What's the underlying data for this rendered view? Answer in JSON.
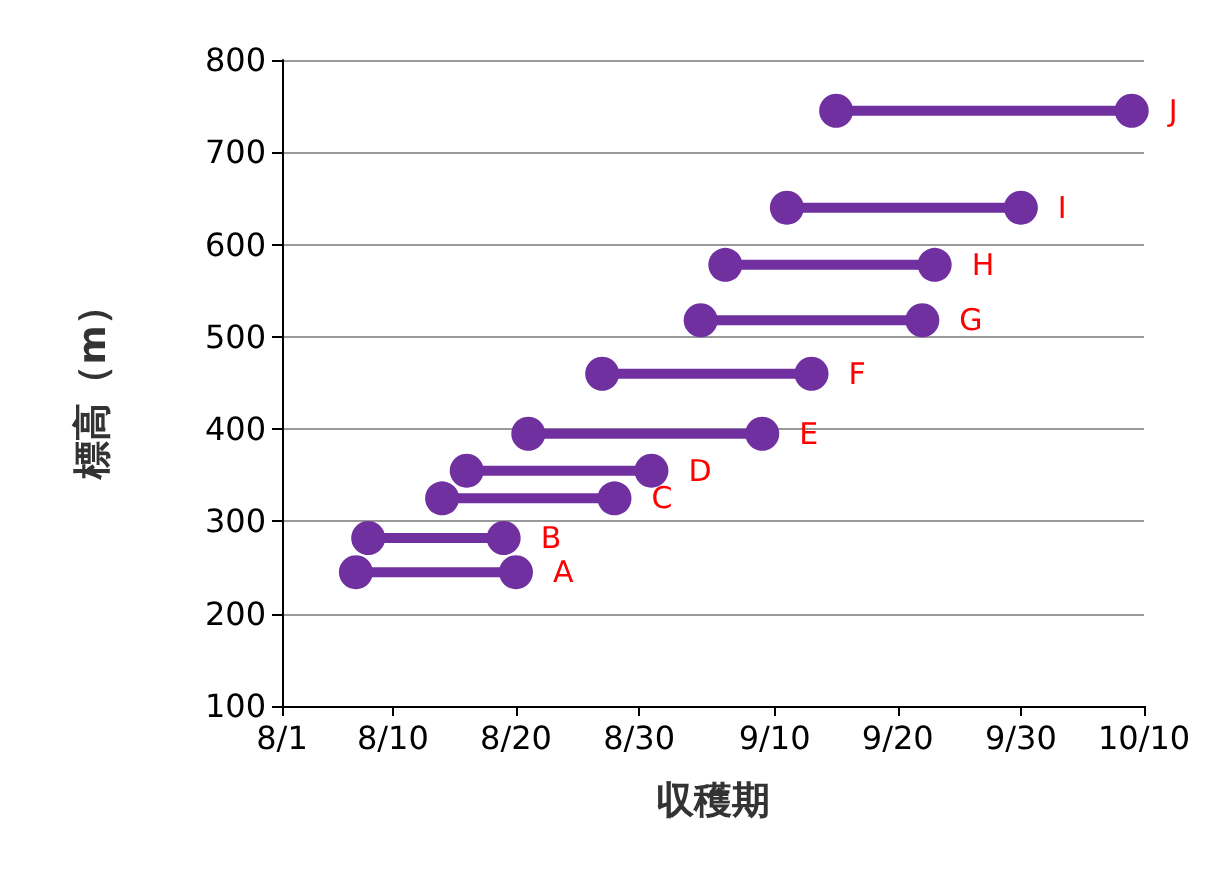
{
  "chart_data": {
    "type": "line",
    "xlabel": "収穫期",
    "ylabel": "標高（m）",
    "xlim": [
      "--08-01",
      "--10-10"
    ],
    "xticks": [
      {
        "value": "--08-01",
        "label": "8/1"
      },
      {
        "value": "--08-10",
        "label": "8/10"
      },
      {
        "value": "--08-20",
        "label": "8/20"
      },
      {
        "value": "--08-30",
        "label": "8/30"
      },
      {
        "value": "--09-10",
        "label": "9/10"
      },
      {
        "value": "--09-20",
        "label": "9/20"
      },
      {
        "value": "--09-30",
        "label": "9/30"
      },
      {
        "value": "--10-10",
        "label": "10/10"
      }
    ],
    "ylim": [
      100,
      800
    ],
    "yticks": [
      100,
      200,
      300,
      400,
      500,
      600,
      700,
      800
    ],
    "grid": "y",
    "legend": false,
    "marker": "circle",
    "line_style": "solid",
    "series": [
      {
        "name": "A",
        "color": "#7030a0",
        "x": [
          "--08-07",
          "--08-20"
        ],
        "values": [
          245,
          245
        ]
      },
      {
        "name": "B",
        "color": "#7030a0",
        "x": [
          "--08-08",
          "--08-19"
        ],
        "values": [
          282,
          282
        ]
      },
      {
        "name": "C",
        "color": "#7030a0",
        "x": [
          "--08-14",
          "--08-28"
        ],
        "values": [
          325,
          325
        ]
      },
      {
        "name": "D",
        "color": "#7030a0",
        "x": [
          "--08-16",
          "--08-31"
        ],
        "values": [
          355,
          355
        ]
      },
      {
        "name": "E",
        "color": "#7030a0",
        "x": [
          "--08-21",
          "--09-09"
        ],
        "values": [
          395,
          395
        ]
      },
      {
        "name": "F",
        "color": "#7030a0",
        "x": [
          "--08-27",
          "--09-13"
        ],
        "values": [
          460,
          460
        ]
      },
      {
        "name": "G",
        "color": "#7030a0",
        "x": [
          "--09-04",
          "--09-22"
        ],
        "values": [
          518,
          518
        ]
      },
      {
        "name": "H",
        "color": "#7030a0",
        "x": [
          "--09-06",
          "--09-23"
        ],
        "values": [
          578,
          578
        ]
      },
      {
        "name": "I",
        "color": "#7030a0",
        "x": [
          "--09-11",
          "--09-30"
        ],
        "values": [
          640,
          640
        ]
      },
      {
        "name": "J",
        "color": "#7030a0",
        "x": [
          "--09-15",
          "--10-09"
        ],
        "values": [
          745,
          745
        ]
      }
    ]
  }
}
